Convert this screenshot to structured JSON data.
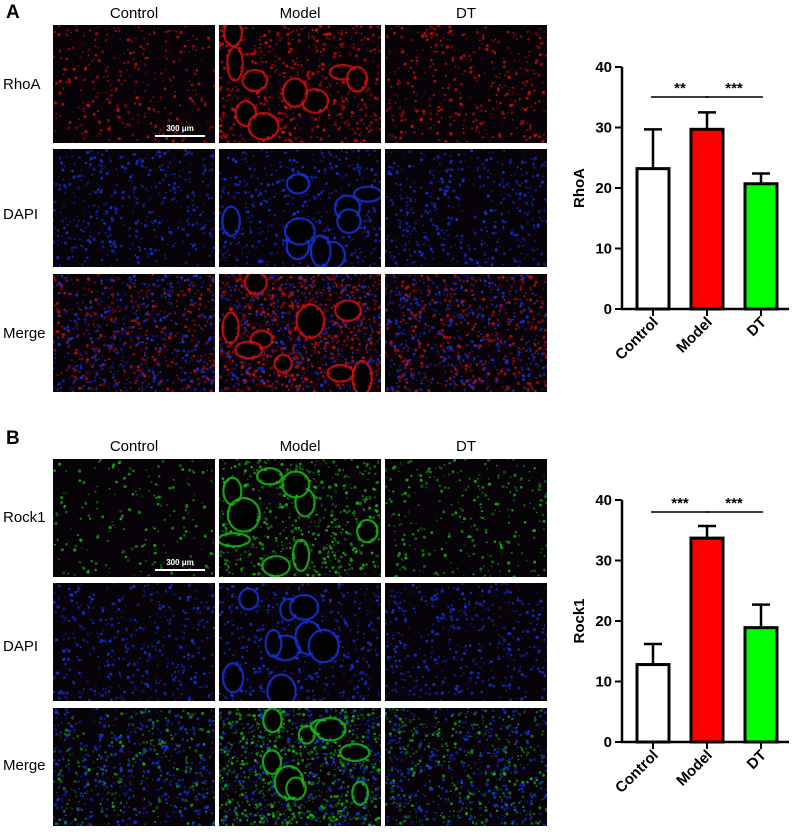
{
  "panels": [
    {
      "letter": "A",
      "columns": [
        "Control",
        "Model",
        "DT"
      ],
      "rows": [
        "RhoA",
        "DAPI",
        "Merge"
      ],
      "scale_bar": "300 μm",
      "colors": {
        "marker": "#d01010",
        "dapi": "#1530d8"
      }
    },
    {
      "letter": "B",
      "columns": [
        "Control",
        "Model",
        "DT"
      ],
      "rows": [
        "Rock1",
        "DAPI",
        "Merge"
      ],
      "scale_bar": "300 μm",
      "colors": {
        "marker": "#18b818",
        "dapi": "#1530d8"
      }
    }
  ],
  "chart_data": [
    {
      "type": "bar",
      "categories": [
        "Control",
        "Model",
        "DT"
      ],
      "values": [
        23.2,
        29.7,
        20.7
      ],
      "errors": [
        6.5,
        2.8,
        1.7
      ],
      "colors": [
        "#ffffff",
        "#ff0000",
        "#00ff00"
      ],
      "ylabel": "RhoA",
      "ylim": [
        0,
        40
      ],
      "yticks": [
        "0",
        "10",
        "20",
        "30",
        "40"
      ],
      "significance": [
        {
          "from": "Control",
          "to": "Model",
          "label": "**"
        },
        {
          "from": "Model",
          "to": "DT",
          "label": "***"
        }
      ]
    },
    {
      "type": "bar",
      "categories": [
        "Control",
        "Model",
        "DT"
      ],
      "values": [
        12.8,
        33.7,
        18.9
      ],
      "errors": [
        3.4,
        2.0,
        3.8
      ],
      "colors": [
        "#ffffff",
        "#ff0000",
        "#00ff00"
      ],
      "ylabel": "Rock1",
      "ylim": [
        0,
        40
      ],
      "yticks": [
        "0",
        "10",
        "20",
        "30",
        "40"
      ],
      "significance": [
        {
          "from": "Control",
          "to": "Model",
          "label": "***"
        },
        {
          "from": "Model",
          "to": "DT",
          "label": "***"
        }
      ]
    }
  ]
}
